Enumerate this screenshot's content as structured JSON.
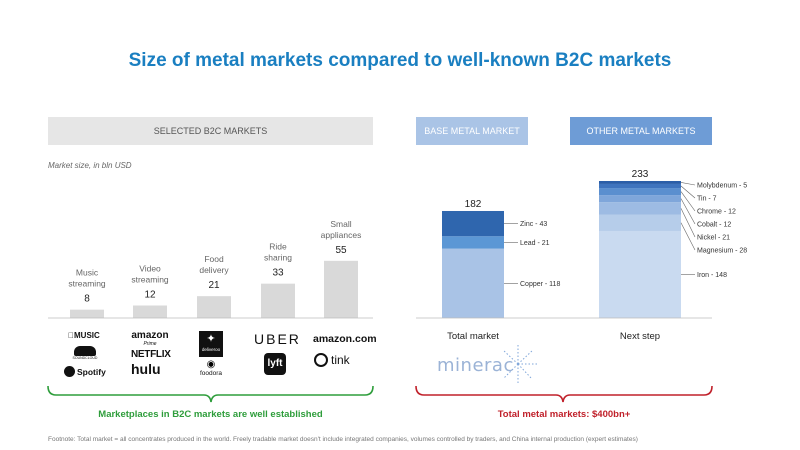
{
  "title": "Size of metal markets compared to well-known B2C markets",
  "banners": {
    "b2c": "SELECTED B2C MARKETS",
    "base": "BASE METAL MARKET",
    "other": "OTHER METAL MARKETS"
  },
  "unit_note": "Market size, in bln USD",
  "chart_data": [
    {
      "type": "bar",
      "categories": [
        "Music streaming",
        "Video streaming",
        "Food delivery",
        "Ride sharing",
        "Small appliances"
      ],
      "values": [
        8,
        12,
        21,
        33,
        55
      ],
      "ylabel": "Market size, in bln USD",
      "color": "#d9d9d9"
    },
    {
      "type": "bar",
      "stacked": true,
      "categories": [
        "Total market",
        "Next step"
      ],
      "totals": [
        182,
        233
      ],
      "series": [
        {
          "name": "Copper",
          "values": [
            118,
            null
          ],
          "color": "#a9c3e6"
        },
        {
          "name": "Lead",
          "values": [
            21,
            null
          ],
          "color": "#5b97d5"
        },
        {
          "name": "Zinc",
          "values": [
            43,
            null
          ],
          "color": "#2f66ae"
        },
        {
          "name": "Iron",
          "values": [
            null,
            148
          ],
          "color": "#c9daf0"
        },
        {
          "name": "Magnesium",
          "values": [
            null,
            28
          ],
          "color": "#b6cdea"
        },
        {
          "name": "Nickel",
          "values": [
            null,
            21
          ],
          "color": "#9dbbe3"
        },
        {
          "name": "Cobalt",
          "values": [
            null,
            12
          ],
          "color": "#7fa6da"
        },
        {
          "name": "Chrome",
          "values": [
            null,
            12
          ],
          "color": "#5b8fcf"
        },
        {
          "name": "Tin",
          "values": [
            null,
            7
          ],
          "color": "#3f74be"
        },
        {
          "name": "Molybdenum",
          "values": [
            null,
            5
          ],
          "color": "#2b5ea8"
        }
      ],
      "segment_labels": [
        "Copper - 118",
        "Lead - 21",
        "Zinc - 43",
        "Iron - 148",
        "Magnesium - 28",
        "Nickel - 21",
        "Cobalt - 12",
        "Chrome - 12",
        "Tin - 7",
        "Molybdenum - 5"
      ]
    }
  ],
  "logos": {
    "music": [
      "MUSIC",
      "SOUNDCLOUD",
      "Spotify"
    ],
    "video": [
      "amazon",
      "Prime",
      "NETFLIX",
      "hulu"
    ],
    "food": [
      "deliveroo",
      "foodora"
    ],
    "ride": [
      "UBER",
      "lyft"
    ],
    "appliances": [
      "amazon.com",
      "tink"
    ],
    "minerac": "minerac"
  },
  "callouts": {
    "b2c": "Marketplaces in B2C markets are well established",
    "metals": "Total metal markets: $400bn+"
  },
  "footnote": "Footnote: Total market = all concentrates produced in the world. Freely tradable market doesn't include integrated companies, volumes controlled by traders, and China internal production (expert estimates)",
  "colors": {
    "title": "#1a7fc1",
    "green": "#2e9d3b",
    "red": "#c0202a"
  }
}
